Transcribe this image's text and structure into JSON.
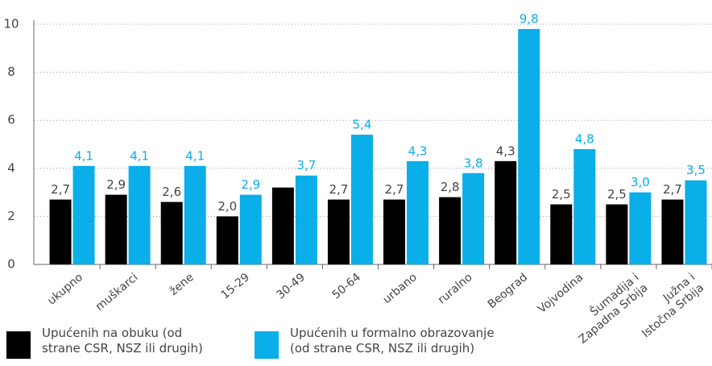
{
  "chart_data": {
    "type": "bar",
    "categories": [
      "ukupno",
      "muškarci",
      "žene",
      "15-29",
      "30-49",
      "50-64",
      "urbano",
      "ruralno",
      "Beograd",
      "Vojvodina",
      "Šumadija i\nZapadna Srbija",
      "Južna i\nIstočna Srbija"
    ],
    "series": [
      {
        "name": "Upućenih na obuku (od\nstrane CSR, NSZ ili  drugih)",
        "color": "#000000",
        "values": [
          2.7,
          2.9,
          2.6,
          2.0,
          3.2,
          2.7,
          2.7,
          2.8,
          4.3,
          2.5,
          2.5,
          2.7
        ],
        "value_labels": [
          "2,7",
          "2,9",
          "2,6",
          "2,0",
          null,
          "2,7",
          "2,7",
          "2,8",
          "4,3",
          "2,5",
          "2,5",
          "2,7"
        ]
      },
      {
        "name": "Upućenih u formalno obrazovanje\n(od strane CSR, NSZ ili  drugih)",
        "color": "#0aaee8",
        "values": [
          4.1,
          4.1,
          4.1,
          2.9,
          3.7,
          5.4,
          4.3,
          3.8,
          9.8,
          4.8,
          3.0,
          3.5
        ],
        "value_labels": [
          "4,1",
          "4,1",
          "4,1",
          "2,9",
          "3,7",
          "5,4",
          "4,3",
          "3,8",
          "9,8",
          "4,8",
          "3,0",
          "3,5"
        ]
      }
    ],
    "ylim": [
      0,
      10
    ],
    "yticks": [
      0,
      2,
      4,
      6,
      8,
      10
    ],
    "grid": true
  }
}
